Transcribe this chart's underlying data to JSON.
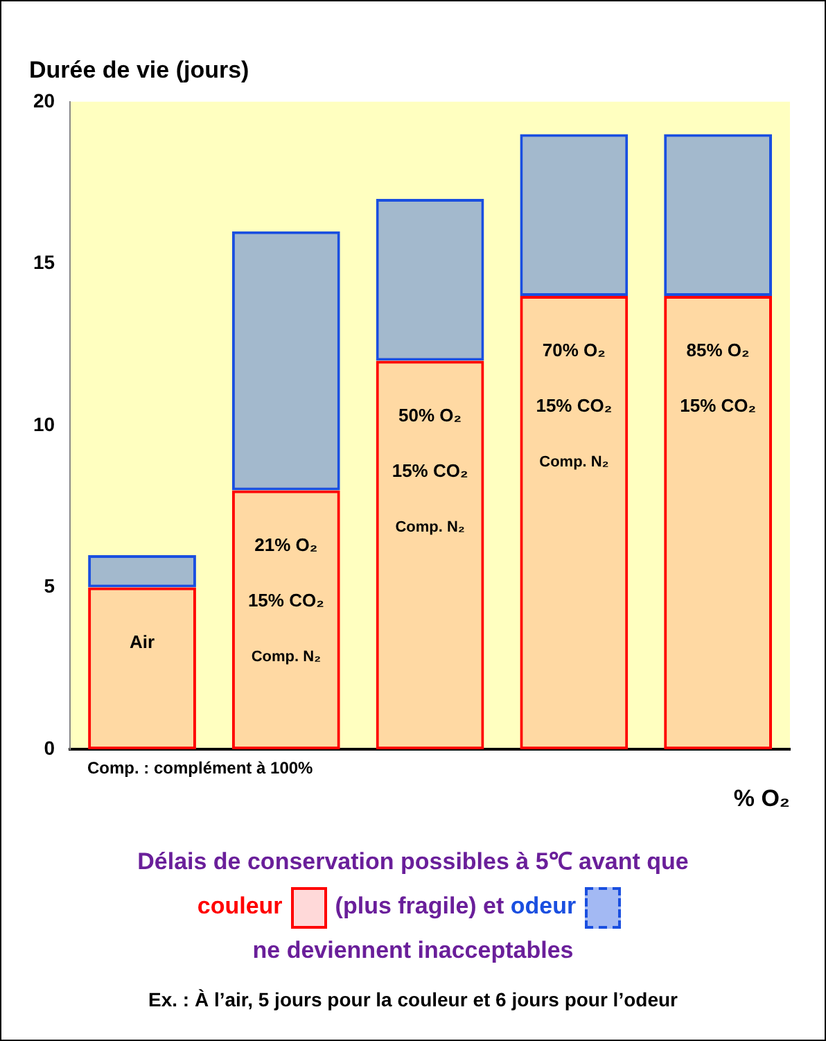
{
  "chart_data": {
    "type": "bar",
    "stacked": true,
    "ylabel": "Durée de vie (jours)",
    "xlabel": "% O₂",
    "legend_title": "Délais de conservation possibles à 5℃ avant que",
    "categories": [
      "Air",
      "21% O₂\n15% CO₂\nComp. N₂",
      "50% O₂\n15% CO₂\nComp. N₂",
      "70% O₂\n15% CO₂\nComp. N₂",
      "85% O₂\n15% CO₂"
    ],
    "series": [
      {
        "name": "couleur",
        "color": "#ff0000",
        "values": [
          5,
          8,
          12,
          14,
          14
        ]
      },
      {
        "name": "odeur",
        "color": "#1a4fe0",
        "values": [
          1,
          8,
          5,
          5,
          5
        ]
      }
    ],
    "ylim": [
      0,
      20
    ],
    "yticks": [
      0,
      5,
      10,
      15,
      20
    ],
    "grid": false,
    "legend": "bottom",
    "tick_labels": "y",
    "annotations": [
      "Comp. : complément à 100%",
      "(plus fragile) et",
      "ne deviennent inacceptables",
      "Ex. : À l’air, 5 jours pour la couleur et 6 jours pour l’odeur"
    ]
  }
}
